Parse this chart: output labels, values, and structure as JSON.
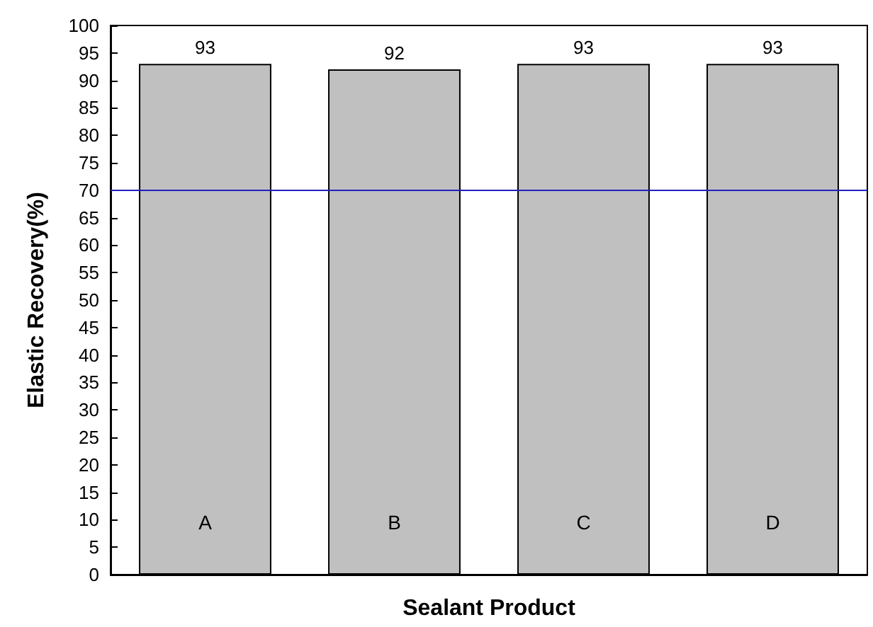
{
  "chart_data": {
    "type": "bar",
    "xlabel": "Sealant Product",
    "ylabel": "Elastic Recovery(%)",
    "categories": [
      "A",
      "B",
      "C",
      "D"
    ],
    "values": [
      93,
      92,
      93,
      93
    ],
    "color": "#c0c0c0",
    "data_labels": true,
    "ylim": [
      0,
      100
    ],
    "yticks": [
      0,
      5,
      10,
      15,
      20,
      25,
      30,
      35,
      40,
      45,
      50,
      55,
      60,
      65,
      70,
      75,
      80,
      85,
      90,
      95,
      100
    ],
    "ref_lines": [
      {
        "axis": "y",
        "value": 70,
        "color": "#2020c0"
      }
    ],
    "grid": false
  }
}
